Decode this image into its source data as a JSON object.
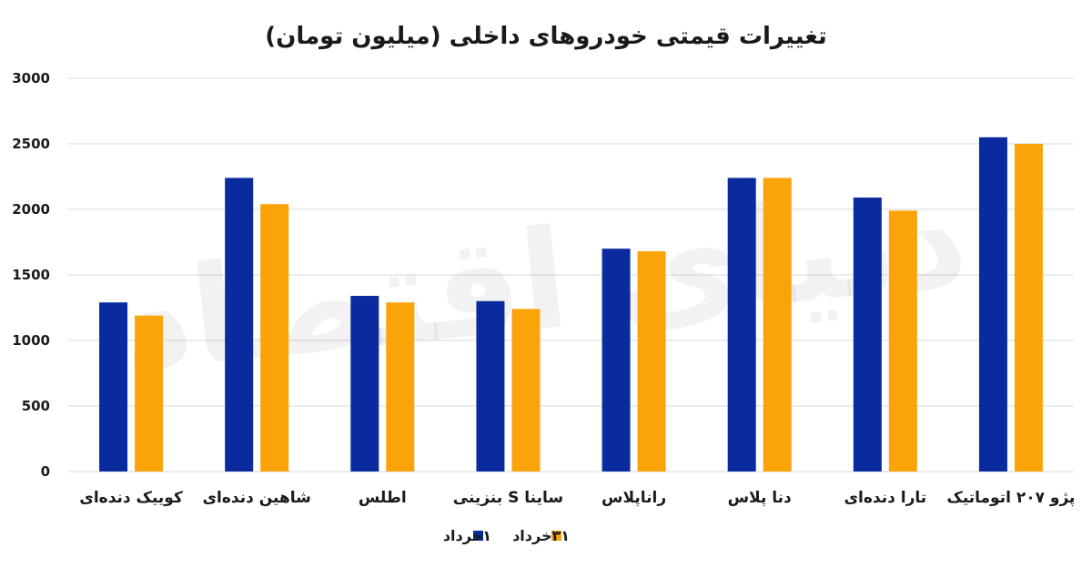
{
  "chart_data": {
    "type": "bar",
    "title": "تغییرات قیمتی خودروهای داخلی (میلیون تومان)",
    "xlabel": "",
    "ylabel": "",
    "ylim": [
      0,
      3000
    ],
    "yticks": [
      "0",
      "500",
      "1000",
      "1500",
      "2000",
      "2500",
      "3000"
    ],
    "yticks_values": [
      0,
      500,
      1000,
      1500,
      2000,
      2500,
      3000
    ],
    "grid": true,
    "legend_position": "bottom",
    "categories": [
      "کوییک دنده‌ای",
      "شاهین دنده‌ای",
      "اطلس",
      "ساینا S بنزینی",
      "راناپلاس",
      "دنا پلاس",
      "تارا دنده‌ای",
      "پژو ۲۰۷ اتوماتیک"
    ],
    "series": [
      {
        "name": "۱خرداد",
        "color": "#0a2b9e",
        "values": [
          1290,
          2240,
          1340,
          1300,
          1700,
          2240,
          2090,
          2550
        ]
      },
      {
        "name": "۳۱خرداد",
        "color": "#fba40a",
        "values": [
          1190,
          2040,
          1290,
          1240,
          1680,
          2240,
          1990,
          2500
        ]
      }
    ],
    "watermark": "دنیای اقتصاد"
  }
}
